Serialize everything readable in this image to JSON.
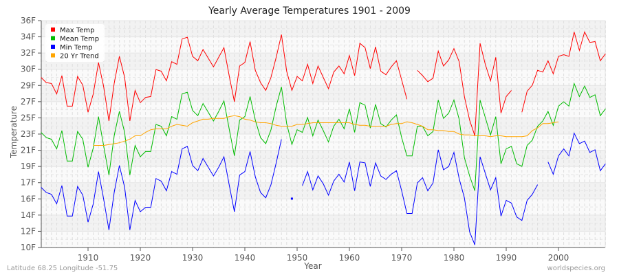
{
  "chart_data": {
    "type": "line",
    "title": "Yearly Average Temperatures 1901 - 2009",
    "xlabel": "Year",
    "ylabel": "Temperature",
    "x_start": 1901,
    "x_end": 2009,
    "x_ticks": [
      1910,
      1920,
      1930,
      1940,
      1950,
      1960,
      1970,
      1980,
      1990,
      2000
    ],
    "y_tick_labels": [
      "10F",
      "12F",
      "14F",
      "16F",
      "17F",
      "19F",
      "21F",
      "23F",
      "25F",
      "27F",
      "29F",
      "30F",
      "32F",
      "34F",
      "36F"
    ],
    "ylim": [
      10,
      36
    ],
    "grid": true,
    "legend_position": "top-left",
    "series": [
      {
        "name": "Max Temp",
        "color": "#ff0000",
        "start_year": 1901,
        "values": [
          29.5,
          28.9,
          28.8,
          27.6,
          29.7,
          26.2,
          26.2,
          29.6,
          28.6,
          25.5,
          27.6,
          31.2,
          28.4,
          24.5,
          28.8,
          31.9,
          29.5,
          24.5,
          28.0,
          26.6,
          27.2,
          27.3,
          30.4,
          30.2,
          29.1,
          31.3,
          31.0,
          33.9,
          34.1,
          31.9,
          31.4,
          32.7,
          31.7,
          30.7,
          31.8,
          32.9,
          29.7,
          26.7,
          30.8,
          31.2,
          33.6,
          30.3,
          28.9,
          28.0,
          29.5,
          31.8,
          34.4,
          30.2,
          28.0,
          29.6,
          29.1,
          31.0,
          28.8,
          30.8,
          29.5,
          28.2,
          30.1,
          30.8,
          29.9,
          32.0,
          29.7,
          33.4,
          32.9,
          30.5,
          33.0,
          30.2,
          29.8,
          30.7,
          31.4,
          29.2,
          27.0,
          null,
          30.3,
          29.7,
          29.0,
          29.4,
          32.5,
          30.8,
          31.5,
          32.8,
          31.3,
          27.3,
          24.6,
          22.8,
          33.4,
          31.0,
          29.1,
          31.8,
          25.4,
          27.3,
          28.0,
          null,
          25.5,
          27.9,
          28.6,
          30.3,
          30.1,
          31.4,
          29.9,
          31.9,
          32.1,
          31.9,
          34.7,
          32.6,
          34.7,
          33.5,
          33.6,
          31.4,
          32.2
        ]
      },
      {
        "name": "Mean Temp",
        "color": "#00bb00",
        "start_year": 1901,
        "values": [
          23.2,
          22.6,
          22.4,
          21.3,
          23.4,
          19.9,
          19.9,
          23.3,
          22.4,
          19.2,
          21.4,
          25.0,
          21.6,
          18.3,
          22.8,
          25.6,
          23.2,
          18.3,
          21.7,
          20.4,
          21.0,
          21.0,
          24.1,
          23.9,
          22.8,
          25.0,
          24.7,
          27.6,
          27.8,
          25.7,
          25.1,
          26.5,
          25.5,
          24.5,
          25.6,
          26.8,
          23.6,
          20.5,
          24.6,
          25.0,
          27.3,
          24.6,
          22.6,
          21.9,
          23.5,
          26.2,
          28.4,
          24.2,
          21.8,
          23.5,
          23.2,
          24.9,
          22.8,
          24.6,
          23.4,
          22.1,
          23.9,
          24.7,
          23.6,
          25.9,
          23.2,
          26.6,
          26.3,
          23.7,
          26.4,
          24.2,
          23.8,
          24.6,
          25.2,
          22.6,
          20.5,
          20.5,
          23.9,
          23.9,
          22.8,
          23.3,
          26.9,
          24.8,
          25.4,
          26.9,
          24.7,
          20.3,
          18.2,
          16.5,
          26.9,
          24.9,
          22.9,
          25.0,
          19.6,
          21.3,
          21.6,
          19.6,
          19.3,
          21.7,
          22.3,
          23.9,
          24.5,
          25.6,
          24.0,
          26.2,
          26.7,
          26.2,
          28.8,
          27.3,
          28.5,
          27.2,
          27.5,
          25.1,
          25.9
        ]
      },
      {
        "name": "Min Temp",
        "color": "#0000ff",
        "start_year": 1901,
        "values": [
          16.9,
          16.3,
          16.1,
          15.0,
          17.1,
          13.6,
          13.6,
          17.0,
          16.0,
          12.9,
          15.0,
          18.7,
          15.5,
          12.0,
          16.3,
          19.4,
          16.9,
          12.0,
          15.4,
          14.1,
          14.6,
          14.6,
          17.9,
          17.6,
          16.5,
          18.7,
          18.4,
          21.3,
          21.6,
          19.4,
          18.8,
          20.2,
          19.2,
          18.2,
          19.2,
          20.4,
          17.2,
          14.1,
          18.3,
          18.7,
          21.0,
          18.1,
          16.3,
          15.7,
          17.2,
          19.7,
          22.4,
          null,
          15.6,
          null,
          17.1,
          18.7,
          16.6,
          18.2,
          17.3,
          16.0,
          17.6,
          18.4,
          17.5,
          19.8,
          16.5,
          19.8,
          19.7,
          17.0,
          19.7,
          18.2,
          17.8,
          18.4,
          18.8,
          16.5,
          13.9,
          13.9,
          17.4,
          18.0,
          16.5,
          17.4,
          21.2,
          18.9,
          19.3,
          20.9,
          17.9,
          15.7,
          11.8,
          10.3,
          20.4,
          18.5,
          16.6,
          18.0,
          13.6,
          15.4,
          15.1,
          13.5,
          13.1,
          15.4,
          16.1,
          17.2,
          null,
          19.8,
          18.4,
          20.5,
          21.3,
          20.5,
          23.1,
          21.9,
          22.2,
          20.9,
          21.2,
          18.8,
          19.6
        ]
      },
      {
        "name": "20 Yr Trend",
        "color": "#ffa500",
        "start_year": 1911,
        "values": [
          21.7,
          21.7,
          21.7,
          21.8,
          21.9,
          22.0,
          22.2,
          22.4,
          22.8,
          22.8,
          23.2,
          23.5,
          23.6,
          23.6,
          23.6,
          23.9,
          24.1,
          24.0,
          23.9,
          24.3,
          24.5,
          24.7,
          24.7,
          24.8,
          24.8,
          24.8,
          25.0,
          25.1,
          25.0,
          24.7,
          24.6,
          24.4,
          24.3,
          24.3,
          24.2,
          24.0,
          23.9,
          23.9,
          23.9,
          24.1,
          24.1,
          24.2,
          24.3,
          24.3,
          24.3,
          24.3,
          24.3,
          24.3,
          24.3,
          24.3,
          24.1,
          24.0,
          24.0,
          23.9,
          23.9,
          23.9,
          23.9,
          24.1,
          24.2,
          24.2,
          24.4,
          24.3,
          24.1,
          23.9,
          23.5,
          23.5,
          23.4,
          23.4,
          23.3,
          23.3,
          23.0,
          22.9,
          22.9,
          22.8,
          22.8,
          22.8,
          22.7,
          22.8,
          22.8,
          22.7,
          22.7,
          22.7,
          22.7,
          22.8,
          23.4,
          23.7,
          24.2,
          24.2,
          24.3,
          24.4
        ]
      }
    ]
  },
  "footer": {
    "location": "Latitude 68.25 Longitude -51.75",
    "source": "worldspecies.org"
  }
}
